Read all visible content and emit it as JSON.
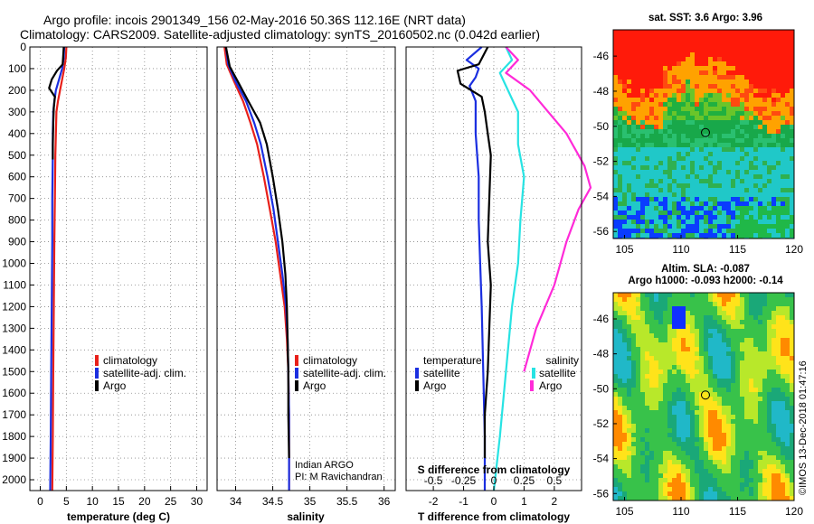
{
  "header": {
    "title_line1": "Argo profile: incois 2901349_156 02-May-2016 50.36S 112.16E (NRT data)",
    "title_line2": "Climatology: CARS2009. Satellite-adjusted climatology: synTS_20160502.nc (0.042d earlier)"
  },
  "colors": {
    "climatology": "#e8201a",
    "satellite": "#1b2fe0",
    "argo": "#000000",
    "sat_salinity": "#27e3e3",
    "argo_salinity": "#ff2ad8"
  },
  "chart_data": [
    {
      "type": "line",
      "name": "temperature",
      "xlabel": "temperature (deg C)",
      "xlim": [
        -2,
        32
      ],
      "ylim": [
        2050,
        0
      ],
      "xticks": [
        0,
        5,
        10,
        15,
        20,
        25,
        30
      ],
      "yticks": [
        0,
        100,
        200,
        300,
        400,
        500,
        600,
        700,
        800,
        900,
        1000,
        1100,
        1200,
        1300,
        1400,
        1500,
        1600,
        1700,
        1800,
        1900,
        2000
      ],
      "legend": {
        "position": "lower-right",
        "entries": [
          "climatology",
          "satellite-adj. clim.",
          "Argo"
        ]
      },
      "series": [
        {
          "name": "climatology",
          "color": "#e8201a",
          "points": [
            [
              5.0,
              0
            ],
            [
              4.9,
              50
            ],
            [
              4.6,
              100
            ],
            [
              4.2,
              150
            ],
            [
              3.8,
              200
            ],
            [
              3.4,
              250
            ],
            [
              3.1,
              300
            ],
            [
              3.0,
              400
            ],
            [
              2.9,
              500
            ],
            [
              2.8,
              700
            ],
            [
              2.7,
              900
            ],
            [
              2.6,
              1200
            ],
            [
              2.5,
              1500
            ],
            [
              2.4,
              1800
            ],
            [
              2.3,
              2050
            ]
          ]
        },
        {
          "name": "satellite-adj. clim.",
          "color": "#1b2fe0",
          "points": [
            [
              4.6,
              0
            ],
            [
              4.5,
              50
            ],
            [
              4.2,
              100
            ],
            [
              3.6,
              150
            ],
            [
              3.0,
              200
            ],
            [
              2.7,
              250
            ],
            [
              2.5,
              300
            ],
            [
              2.4,
              400
            ],
            [
              2.4,
              500
            ],
            [
              2.3,
              700
            ],
            [
              2.3,
              900
            ],
            [
              2.2,
              1200
            ],
            [
              2.1,
              1500
            ],
            [
              2.0,
              1800
            ],
            [
              1.9,
              2050
            ]
          ]
        },
        {
          "name": "Argo",
          "color": "#000000",
          "points": [
            [
              4.5,
              0
            ],
            [
              4.4,
              40
            ],
            [
              4.3,
              80
            ],
            [
              3.2,
              110
            ],
            [
              2.2,
              150
            ],
            [
              1.7,
              190
            ],
            [
              2.8,
              230
            ],
            [
              2.6,
              280
            ],
            [
              2.5,
              350
            ],
            [
              2.4,
              450
            ],
            [
              2.4,
              520
            ]
          ]
        }
      ]
    },
    {
      "type": "line",
      "name": "salinity",
      "xlabel": "salinity",
      "xlim": [
        33.75,
        36.15
      ],
      "ylim": [
        2050,
        0
      ],
      "xticks": [
        34,
        34.5,
        35,
        35.5,
        36
      ],
      "legend": {
        "position": "lower-right",
        "entries": [
          "climatology",
          "satellite-adj. clim.",
          "Argo"
        ]
      },
      "annotation": [
        "Indian ARGO",
        "PI: M Ravichandran"
      ],
      "series": [
        {
          "name": "climatology",
          "color": "#e8201a",
          "points": [
            [
              33.85,
              0
            ],
            [
              33.88,
              80
            ],
            [
              33.98,
              160
            ],
            [
              34.1,
              250
            ],
            [
              34.2,
              350
            ],
            [
              34.29,
              450
            ],
            [
              34.38,
              600
            ],
            [
              34.46,
              750
            ],
            [
              34.54,
              900
            ],
            [
              34.6,
              1050
            ],
            [
              34.66,
              1200
            ],
            [
              34.69,
              1350
            ],
            [
              34.71,
              1500
            ],
            [
              34.72,
              1700
            ],
            [
              34.72,
              2050
            ]
          ]
        },
        {
          "name": "satellite-adj. clim.",
          "color": "#1b2fe0",
          "points": [
            [
              33.87,
              0
            ],
            [
              33.9,
              80
            ],
            [
              34.0,
              160
            ],
            [
              34.14,
              250
            ],
            [
              34.25,
              350
            ],
            [
              34.34,
              450
            ],
            [
              34.43,
              600
            ],
            [
              34.51,
              750
            ],
            [
              34.57,
              900
            ],
            [
              34.63,
              1050
            ],
            [
              34.68,
              1200
            ],
            [
              34.7,
              1350
            ],
            [
              34.71,
              1500
            ],
            [
              34.72,
              1700
            ],
            [
              34.72,
              2050
            ]
          ]
        },
        {
          "name": "Argo",
          "color": "#000000",
          "points": [
            [
              33.87,
              0
            ],
            [
              33.92,
              90
            ],
            [
              34.03,
              160
            ],
            [
              34.17,
              250
            ],
            [
              34.33,
              350
            ],
            [
              34.42,
              450
            ],
            [
              34.5,
              600
            ],
            [
              34.57,
              750
            ],
            [
              34.63,
              900
            ],
            [
              34.67,
              1050
            ],
            [
              34.69,
              1200
            ],
            [
              34.7,
              1350
            ],
            [
              34.71,
              1500
            ],
            [
              34.71,
              1700
            ],
            [
              34.72,
              1900
            ]
          ]
        }
      ]
    },
    {
      "type": "line",
      "name": "differences",
      "xlabel": "T difference from climatology",
      "xlabel_top": "S difference from climatology",
      "xlim": [
        -2.9,
        2.9
      ],
      "ylim": [
        2050,
        0
      ],
      "xticks": [
        -2,
        -1,
        0,
        1,
        2
      ],
      "xticks_top": [
        "-0.5",
        "-0.25",
        "0",
        "0.25",
        "0.5"
      ],
      "legend": {
        "position": "lower",
        "temperature_title": "temperature",
        "salinity_title": "salinity",
        "entries_left": [
          "satellite",
          "Argo"
        ],
        "entries_right": [
          "satellite",
          "Argo"
        ]
      },
      "series": [
        {
          "name": "T satellite",
          "color": "#1b2fe0",
          "points": [
            [
              -0.4,
              0
            ],
            [
              -0.9,
              60
            ],
            [
              -0.5,
              100
            ],
            [
              -0.6,
              140
            ],
            [
              -0.8,
              180
            ],
            [
              -0.6,
              250
            ],
            [
              -0.6,
              400
            ],
            [
              -0.5,
              600
            ],
            [
              -0.5,
              800
            ],
            [
              -0.45,
              1000
            ],
            [
              -0.4,
              1200
            ],
            [
              -0.35,
              1500
            ],
            [
              -0.3,
              1800
            ],
            [
              -0.3,
              2050
            ]
          ]
        },
        {
          "name": "T Argo",
          "color": "#000000",
          "points": [
            [
              -0.2,
              0
            ],
            [
              -0.5,
              80
            ],
            [
              -1.2,
              110
            ],
            [
              -1.1,
              170
            ],
            [
              -0.4,
              230
            ],
            [
              -0.3,
              300
            ],
            [
              -0.2,
              400
            ],
            [
              -0.1,
              500
            ],
            [
              -0.15,
              700
            ],
            [
              -0.2,
              900
            ],
            [
              -0.1,
              1100
            ],
            [
              -0.15,
              1300
            ],
            [
              -0.2,
              1500
            ],
            [
              -0.3,
              1700
            ],
            [
              -0.3,
              1900
            ]
          ]
        },
        {
          "name": "S satellite",
          "color": "#27e3e3",
          "points": [
            [
              0.1,
              0
            ],
            [
              0.15,
              60
            ],
            [
              0.05,
              120
            ],
            [
              0.1,
              180
            ],
            [
              0.2,
              300
            ],
            [
              0.2,
              450
            ],
            [
              0.25,
              600
            ],
            [
              0.22,
              800
            ],
            [
              0.2,
              1000
            ],
            [
              0.15,
              1200
            ],
            [
              0.1,
              1500
            ],
            [
              0.05,
              1800
            ],
            [
              0.0,
              2050
            ]
          ]
        },
        {
          "name": "S Argo",
          "color": "#ff2ad8",
          "points": [
            [
              0.1,
              0
            ],
            [
              0.2,
              60
            ],
            [
              0.1,
              120
            ],
            [
              0.3,
              200
            ],
            [
              0.45,
              300
            ],
            [
              0.6,
              400
            ],
            [
              0.75,
              550
            ],
            [
              0.8,
              650
            ],
            [
              0.7,
              750
            ],
            [
              0.6,
              900
            ],
            [
              0.5,
              1100
            ],
            [
              0.35,
              1300
            ],
            [
              0.25,
              1500
            ]
          ]
        }
      ]
    },
    {
      "type": "heatmap",
      "name": "sst-map",
      "title": "sat. SST: 3.6 Argo: 3.96",
      "xlim": [
        104,
        120
      ],
      "ylim": [
        -56.4,
        -44.5
      ],
      "xticks": [
        105,
        110,
        115,
        120
      ],
      "yticks": [
        -46,
        -48,
        -50,
        -52,
        -54,
        -56
      ],
      "argo_position": [
        112.16,
        -50.36
      ]
    },
    {
      "type": "heatmap",
      "name": "sla-map",
      "title_line1": "Altim. SLA: -0.087",
      "title_line2": "Argo h1000: -0.093 h2000: -0.14",
      "xlim": [
        104,
        120
      ],
      "ylim": [
        -56.4,
        -44.5
      ],
      "xticks": [
        105,
        110,
        115,
        120
      ],
      "yticks": [
        -46,
        -48,
        -50,
        -52,
        -54,
        -56
      ],
      "argo_position": [
        112.16,
        -50.36
      ]
    }
  ],
  "credit": "©IMOS 13-Dec-2018 01:47:16"
}
